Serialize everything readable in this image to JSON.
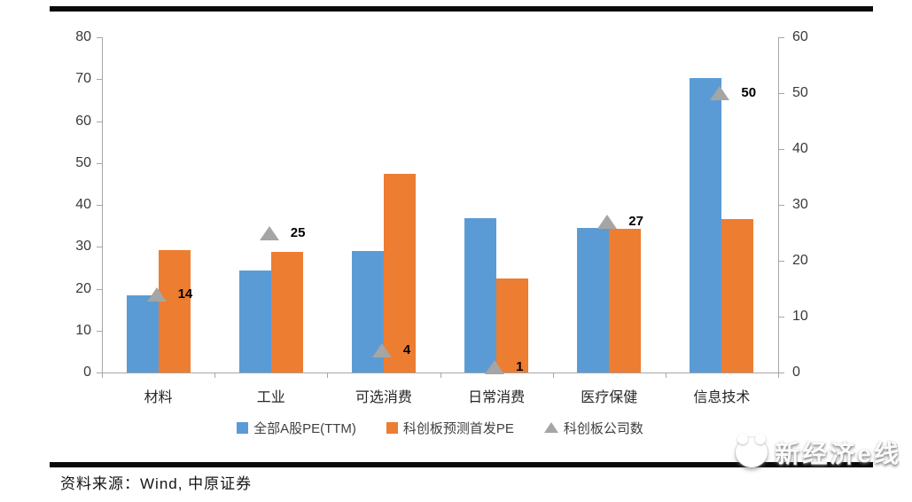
{
  "chart_data": {
    "type": "bar",
    "categories": [
      "材料",
      "工业",
      "可选消费",
      "日常消费",
      "医疗保健",
      "信息技术"
    ],
    "series": [
      {
        "name": "全部A股PE(TTM)",
        "type": "bar",
        "axis": "left",
        "color": "#5B9BD5",
        "values": [
          18.4,
          24.3,
          29.0,
          36.8,
          34.5,
          70.3
        ]
      },
      {
        "name": "科创板预测首发PE",
        "type": "bar",
        "axis": "left",
        "color": "#ED7D31",
        "values": [
          29.2,
          28.7,
          47.4,
          22.4,
          34.2,
          36.7
        ]
      },
      {
        "name": "科创板公司数",
        "type": "scatter",
        "marker": "triangle",
        "axis": "right",
        "color": "#A5A5A5",
        "values": [
          14,
          25,
          4,
          1,
          27,
          50
        ],
        "data_labels": [
          14,
          25,
          4,
          1,
          27,
          50
        ]
      }
    ],
    "axes": {
      "left": {
        "min": 0,
        "max": 80,
        "step": 10
      },
      "right": {
        "min": 0,
        "max": 60,
        "step": 10
      }
    },
    "grid": false,
    "legend_position": "bottom",
    "title": ""
  },
  "footer": {
    "source": "资料来源：Wind, 中原证券"
  },
  "watermark": {
    "text": "新经济e线"
  }
}
